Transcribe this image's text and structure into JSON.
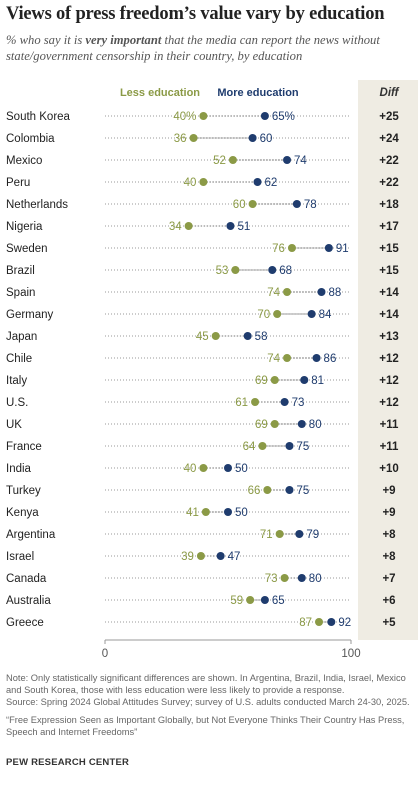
{
  "header": {
    "title": "Views of press freedom’s value vary by education",
    "subtitle_pre": "% who say it is ",
    "subtitle_emph": "very important",
    "subtitle_post": " that the media can report the news without state/government censorship in their country, by education"
  },
  "colors": {
    "less_education": "#8b9a46",
    "more_education": "#1f3c6e",
    "diff_column_bg": "#efece3",
    "dotted_line": "#9a9a9a",
    "connector": "#777777"
  },
  "chart_data": {
    "type": "dot",
    "series": [
      {
        "name": "Less education",
        "values": [
          40,
          36,
          52,
          40,
          60,
          34,
          76,
          53,
          74,
          70,
          45,
          74,
          69,
          61,
          69,
          64,
          40,
          66,
          41,
          71,
          39,
          73,
          59,
          87
        ]
      },
      {
        "name": "More education",
        "values": [
          65,
          60,
          74,
          62,
          78,
          51,
          91,
          68,
          88,
          84,
          58,
          86,
          81,
          73,
          80,
          75,
          50,
          75,
          50,
          79,
          47,
          80,
          65,
          92
        ]
      }
    ],
    "categories": [
      "South Korea",
      "Colombia",
      "Mexico",
      "Peru",
      "Netherlands",
      "Nigeria",
      "Sweden",
      "Brazil",
      "Spain",
      "Germany",
      "Japan",
      "Chile",
      "Italy",
      "U.S.",
      "UK",
      "France",
      "India",
      "Turkey",
      "Kenya",
      "Argentina",
      "Israel",
      "Canada",
      "Australia",
      "Greece"
    ],
    "less_labels": [
      "40%",
      "36",
      "52",
      "40",
      "60",
      "34",
      "76",
      "53",
      "74",
      "70",
      "45",
      "74",
      "69",
      "61",
      "69",
      "64",
      "40",
      "66",
      "41",
      "71",
      "39",
      "73",
      "59",
      "87"
    ],
    "more_labels": [
      "65%",
      "60",
      "74",
      "62",
      "78",
      "51",
      "91",
      "68",
      "88",
      "84",
      "58",
      "86",
      "81",
      "73",
      "80",
      "75",
      "50",
      "75",
      "50",
      "79",
      "47",
      "80",
      "65",
      "92"
    ],
    "diff_header": "Diff",
    "diff": [
      "+25",
      "+24",
      "+22",
      "+22",
      "+18",
      "+17",
      "+15",
      "+15",
      "+14",
      "+14",
      "+13",
      "+12",
      "+12",
      "+12",
      "+11",
      "+11",
      "+10",
      "+9",
      "+9",
      "+8",
      "+8",
      "+7",
      "+6",
      "+5"
    ],
    "xlim": [
      0,
      100
    ],
    "xticks": [
      "0",
      "100"
    ]
  },
  "notes": {
    "note": "Note: Only statistically significant differences are shown. In Argentina, Brazil, India, Israel, Mexico and South Korea, those with less education were less likely to provide a response.",
    "source": "Source: Spring 2024 Global Attitudes Survey; survey of U.S. adults conducted March 24-30, 2025.",
    "report": "“Free Expression Seen as Important Globally, but Not Everyone Thinks Their Country Has Press, Speech and Internet Freedoms”"
  },
  "brand": "PEW RESEARCH CENTER"
}
